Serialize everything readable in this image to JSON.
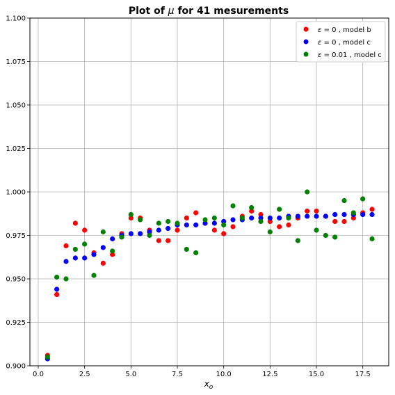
{
  "chart_data": {
    "type": "scatter",
    "title_prefix": "Plot of ",
    "title_symbol": "μ",
    "title_suffix": " for 41 mesurements",
    "xlabel_main": "x",
    "xlabel_sub": "o",
    "xlim": [
      -0.45,
      18.9
    ],
    "ylim": [
      0.9,
      1.1
    ],
    "xticks": [
      0.0,
      2.5,
      5.0,
      7.5,
      10.0,
      12.5,
      15.0,
      17.5
    ],
    "xtick_labels": [
      "0.0",
      "2.5",
      "5.0",
      "7.5",
      "10.0",
      "12.5",
      "15.0",
      "17.5"
    ],
    "yticks": [
      0.9,
      0.925,
      0.95,
      0.975,
      1.0,
      1.025,
      1.05,
      1.075,
      1.1
    ],
    "ytick_labels": [
      "0.900",
      "0.925",
      "0.950",
      "0.975",
      "1.000",
      "1.025",
      "1.050",
      "1.075",
      "1.100"
    ],
    "grid": true,
    "legend_position": "top-right",
    "x": [
      0.5,
      1.0,
      1.5,
      2.0,
      2.5,
      3.0,
      3.5,
      4.0,
      4.5,
      5.0,
      5.5,
      6.0,
      6.5,
      7.0,
      7.5,
      8.0,
      8.5,
      9.0,
      9.5,
      10.0,
      10.5,
      11.0,
      11.5,
      12.0,
      12.5,
      13.0,
      13.5,
      14.0,
      14.5,
      15.0,
      15.5,
      16.0,
      16.5,
      17.0,
      17.5,
      18.0
    ],
    "series": [
      {
        "legend_symbol": "ε",
        "legend_eq": " = 0",
        "legend_model": " , model b",
        "color": "#ff0000",
        "values": [
          0.906,
          0.941,
          0.969,
          0.982,
          0.978,
          0.965,
          0.959,
          0.964,
          0.976,
          0.985,
          0.985,
          0.978,
          0.972,
          0.972,
          0.978,
          0.985,
          0.988,
          0.982,
          0.978,
          0.976,
          0.98,
          0.986,
          0.989,
          0.987,
          0.983,
          0.98,
          0.981,
          0.985,
          0.989,
          0.989,
          0.986,
          0.983,
          0.983,
          0.985,
          0.988,
          0.99
        ]
      },
      {
        "legend_symbol": "ε",
        "legend_eq": " = 0",
        "legend_model": " , model c",
        "color": "#0000ff",
        "values": [
          0.904,
          0.944,
          0.96,
          0.962,
          0.962,
          0.964,
          0.968,
          0.973,
          0.975,
          0.976,
          0.976,
          0.977,
          0.978,
          0.979,
          0.981,
          0.981,
          0.981,
          0.982,
          0.982,
          0.983,
          0.984,
          0.984,
          0.985,
          0.985,
          0.985,
          0.985,
          0.986,
          0.986,
          0.986,
          0.986,
          0.986,
          0.987,
          0.987,
          0.987,
          0.987,
          0.987
        ]
      },
      {
        "legend_symbol": "ε",
        "legend_eq": " = 0.01",
        "legend_model": " , model c",
        "color": "#008000",
        "values": [
          0.905,
          0.951,
          0.95,
          0.967,
          0.97,
          0.952,
          0.977,
          0.966,
          0.974,
          0.987,
          0.984,
          0.975,
          0.982,
          0.983,
          0.982,
          0.967,
          0.965,
          0.984,
          0.985,
          0.981,
          0.992,
          0.985,
          0.991,
          0.983,
          0.977,
          0.99,
          0.985,
          0.972,
          1.0,
          0.978,
          0.975,
          0.974,
          0.995,
          0.988,
          0.996,
          0.973
        ]
      }
    ]
  }
}
